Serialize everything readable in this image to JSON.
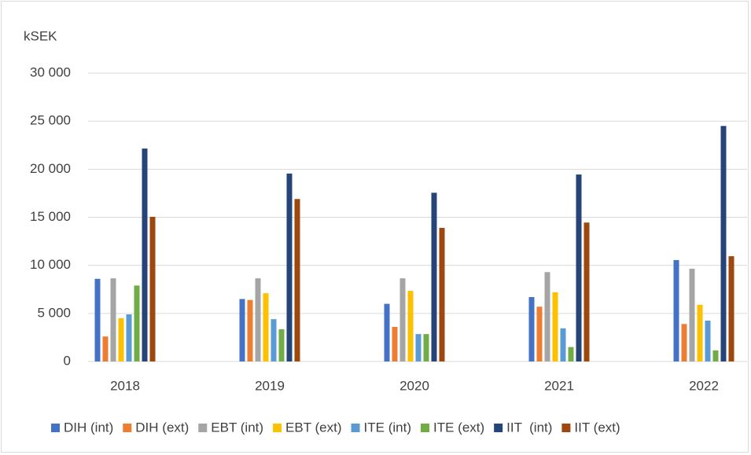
{
  "chart_data": {
    "type": "bar",
    "y_label": "kSEK",
    "categories": [
      "2018",
      "2019",
      "2020",
      "2021",
      "2022"
    ],
    "series": [
      {
        "name": "DIH (int)",
        "color": "#4472c4",
        "values": [
          8600,
          6500,
          6000,
          6700,
          10550
        ]
      },
      {
        "name": "DIH (ext)",
        "color": "#ed7d31",
        "values": [
          2600,
          6400,
          3600,
          5700,
          3900
        ]
      },
      {
        "name": "EBT (int)",
        "color": "#a5a5a5",
        "values": [
          8650,
          8650,
          8650,
          9300,
          9650
        ]
      },
      {
        "name": "EBT (ext)",
        "color": "#ffc000",
        "values": [
          4500,
          7100,
          7350,
          7200,
          5900
        ]
      },
      {
        "name": "ITE (int)",
        "color": "#5b9bd5",
        "values": [
          4900,
          4400,
          2850,
          3450,
          4250
        ]
      },
      {
        "name": "ITE (ext)",
        "color": "#70ad47",
        "values": [
          7900,
          3350,
          2850,
          1500,
          1150
        ]
      },
      {
        "name": "IIT  (int)",
        "color": "#264478",
        "values": [
          22150,
          19550,
          17550,
          19450,
          24500
        ]
      },
      {
        "name": "IIT (ext)",
        "color": "#9e480e",
        "values": [
          15050,
          16900,
          13900,
          14450,
          10950
        ]
      }
    ],
    "ylim": [
      0,
      30000
    ],
    "yticks": [
      0,
      {
        "value": 5000,
        "label": "5 000"
      },
      {
        "value": 10000,
        "label": "10 000"
      },
      {
        "value": 15000,
        "label": "15 000"
      },
      {
        "value": 20000,
        "label": "20 000"
      },
      {
        "value": 25000,
        "label": "25 000"
      },
      {
        "value": 30000,
        "label": "30 000"
      }
    ],
    "grid": true,
    "legend": "bottom"
  }
}
